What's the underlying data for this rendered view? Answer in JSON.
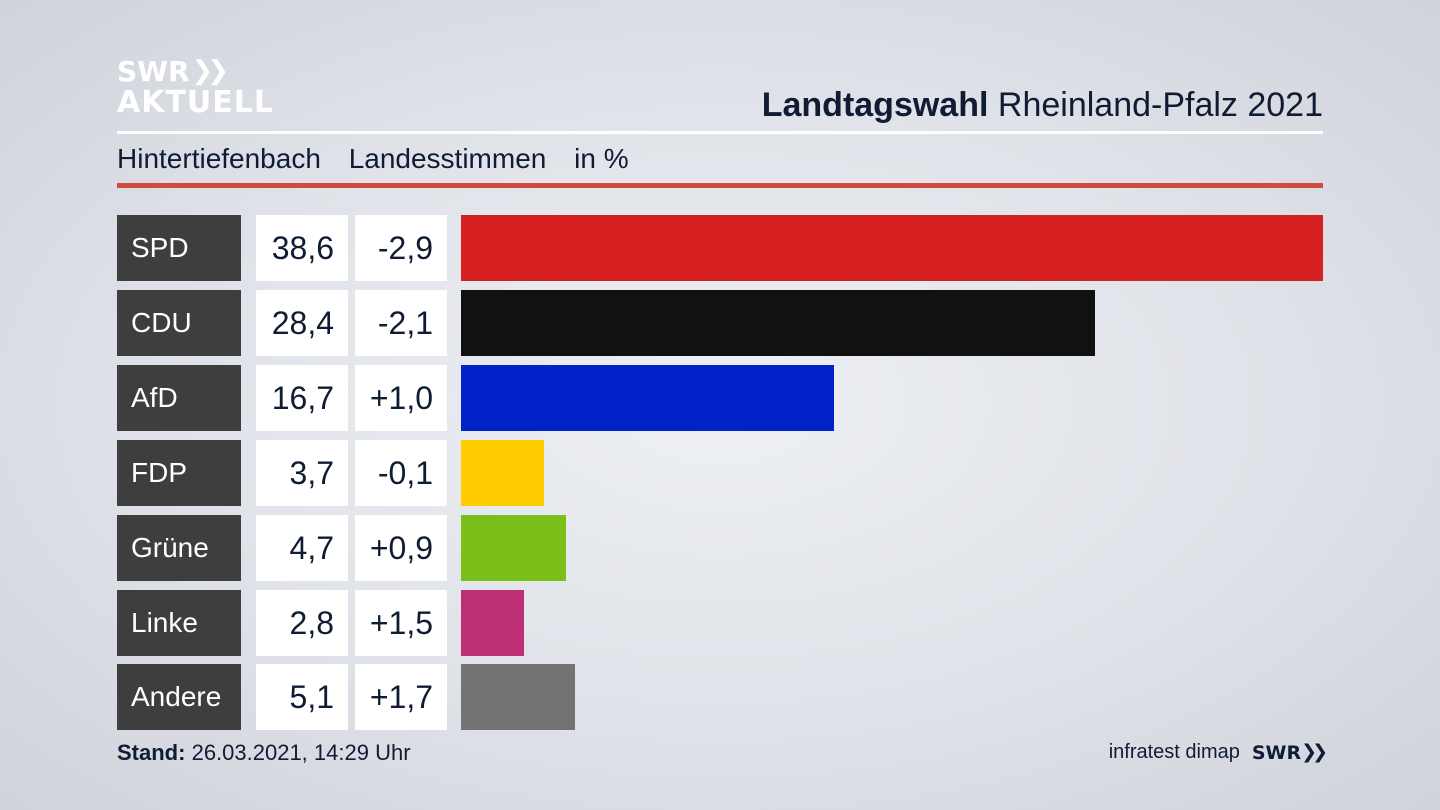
{
  "logo": {
    "line1": "SWR",
    "line1_icon": "chevrons-right-icon",
    "line2": "AKTUELL"
  },
  "header": {
    "title_bold": "Landtagswahl",
    "title_rest": "Rheinland-Pfalz 2021"
  },
  "subtitle": {
    "place": "Hintertiefenbach",
    "measure": "Landesstimmen",
    "unit": "in %"
  },
  "chart_data": {
    "type": "bar",
    "categories": [
      "SPD",
      "CDU",
      "AfD",
      "FDP",
      "Grüne",
      "Linke",
      "Andere"
    ],
    "values": [
      38.6,
      28.4,
      16.7,
      3.7,
      4.7,
      2.8,
      5.1
    ],
    "value_labels": [
      "38,6",
      "28,4",
      "16,7",
      "3,7",
      "4,7",
      "2,8",
      "5,1"
    ],
    "diff_labels": [
      "-2,9",
      "-2,1",
      "+1,0",
      "-0,1",
      "+0,9",
      "+1,5",
      "+1,7"
    ],
    "diffs": [
      -2.9,
      -2.1,
      1.0,
      -0.1,
      0.9,
      1.5,
      1.7
    ],
    "colors": [
      "#d62020",
      "#111111",
      "#0022c8",
      "#ffcc00",
      "#7abf1a",
      "#be3075",
      "#737373"
    ],
    "xlim": [
      0,
      38.6
    ],
    "orientation": "horizontal",
    "grid": false
  },
  "footer": {
    "stand_label": "Stand:",
    "stand_value": "26.03.2021, 14:29 Uhr",
    "source": "infratest dimap",
    "brand": "SWR",
    "brand_icon": "chevrons-right-icon"
  },
  "colors": {
    "accent_rule": "#cf4b3c",
    "party_box": "#3e3e3e",
    "text": "#0f1c33"
  }
}
